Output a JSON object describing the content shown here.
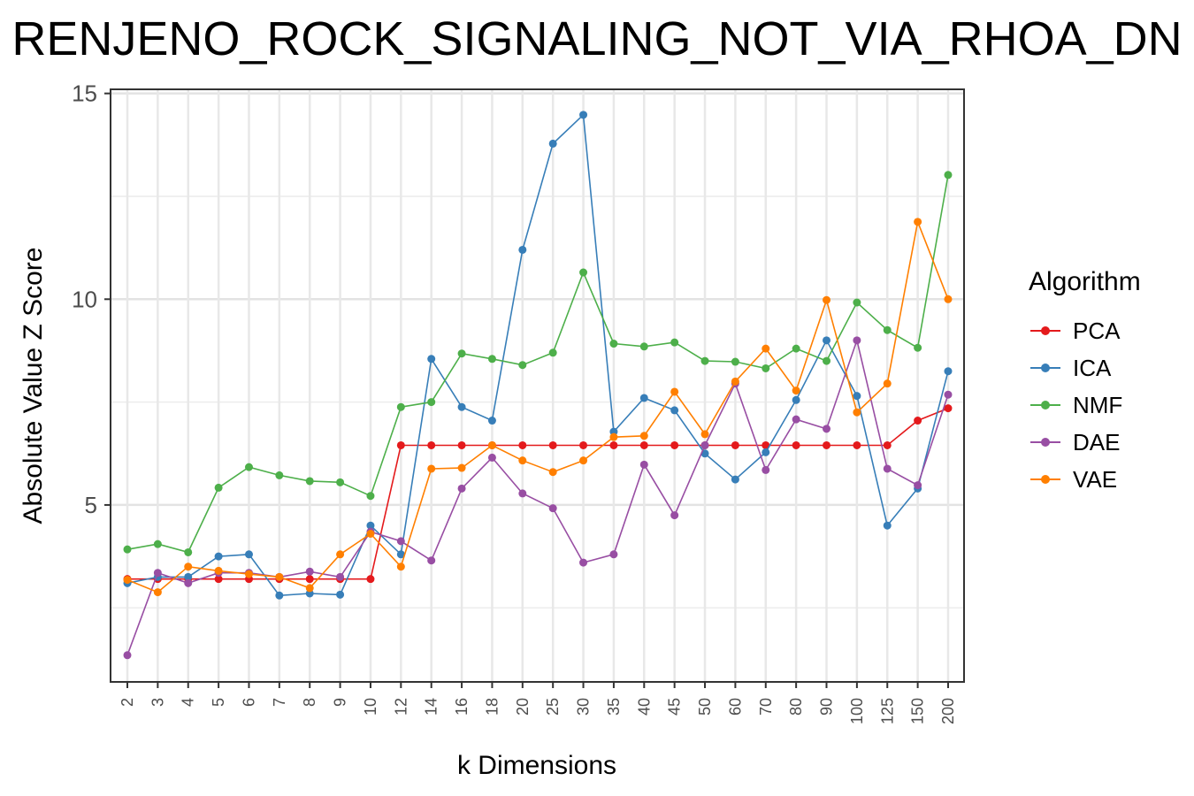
{
  "chart_data": {
    "type": "line",
    "title": "RENJENO_ROCK_SIGNALING_NOT_VIA_RHOA_DN",
    "xlabel": "k Dimensions",
    "ylabel": "Absolute Value Z Score",
    "categories": [
      "2",
      "3",
      "4",
      "5",
      "6",
      "7",
      "8",
      "9",
      "10",
      "12",
      "14",
      "16",
      "18",
      "20",
      "25",
      "30",
      "35",
      "40",
      "45",
      "50",
      "60",
      "70",
      "80",
      "90",
      "100",
      "125",
      "150",
      "200"
    ],
    "ylim": [
      0.7,
      15.1
    ],
    "yticks": [
      5,
      10,
      15
    ],
    "ygrid_minor": [
      2.5,
      7.5,
      12.5
    ],
    "grid": true,
    "legend": {
      "title": "Algorithm",
      "placement": "right"
    },
    "series": [
      {
        "name": "PCA",
        "color": "#e41a1c",
        "values": [
          3.2,
          3.2,
          3.2,
          3.2,
          3.2,
          3.2,
          3.2,
          3.2,
          3.2,
          6.45,
          6.45,
          6.45,
          6.45,
          6.45,
          6.45,
          6.45,
          6.45,
          6.45,
          6.45,
          6.45,
          6.45,
          6.45,
          6.45,
          6.45,
          6.45,
          6.45,
          7.05,
          7.35
        ]
      },
      {
        "name": "ICA",
        "color": "#377eb8",
        "values": [
          3.1,
          3.25,
          3.25,
          3.75,
          3.8,
          2.8,
          2.85,
          2.82,
          4.5,
          3.8,
          8.55,
          7.38,
          7.05,
          11.2,
          13.78,
          14.48,
          6.78,
          7.6,
          7.3,
          6.25,
          5.62,
          6.28,
          7.55,
          9.0,
          7.65,
          4.5,
          5.4,
          8.25
        ]
      },
      {
        "name": "NMF",
        "color": "#4daf4a",
        "values": [
          3.92,
          4.05,
          3.85,
          5.42,
          5.92,
          5.72,
          5.58,
          5.55,
          5.22,
          7.38,
          7.5,
          8.68,
          8.55,
          8.4,
          8.7,
          10.65,
          8.92,
          8.85,
          8.95,
          8.5,
          8.48,
          8.32,
          8.8,
          8.5,
          9.92,
          9.25,
          8.82,
          13.02
        ]
      },
      {
        "name": "DAE",
        "color": "#984ea3",
        "values": [
          1.35,
          3.35,
          3.1,
          3.35,
          3.35,
          3.25,
          3.38,
          3.25,
          4.35,
          4.12,
          3.65,
          5.4,
          6.15,
          5.28,
          4.92,
          3.6,
          3.8,
          5.98,
          4.75,
          6.45,
          7.95,
          5.85,
          7.08,
          6.85,
          9.0,
          5.88,
          5.48,
          7.68
        ]
      },
      {
        "name": "VAE",
        "color": "#ff7f00",
        "values": [
          3.18,
          2.88,
          3.5,
          3.4,
          3.32,
          3.25,
          2.98,
          3.8,
          4.3,
          3.5,
          5.88,
          5.9,
          6.45,
          6.08,
          5.8,
          6.08,
          6.65,
          6.68,
          7.75,
          6.72,
          8.0,
          8.8,
          7.78,
          9.98,
          7.25,
          7.95,
          11.88,
          10.0
        ]
      }
    ]
  }
}
